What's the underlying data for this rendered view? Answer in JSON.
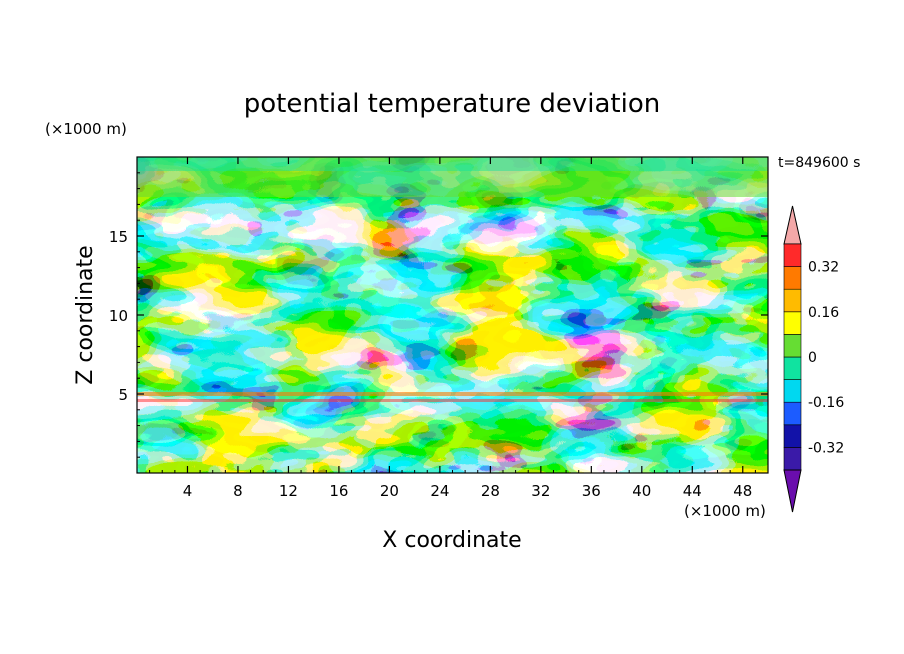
{
  "chart_data": {
    "type": "heatmap",
    "title": "potential temperature deviation",
    "xlabel": "X coordinate",
    "ylabel": "Z coordinate",
    "x_unit": "(×1000 m)",
    "y_unit": "(×1000 m)",
    "time_label": "t=849600 s",
    "xlim": [
      0,
      50
    ],
    "ylim": [
      0,
      20
    ],
    "x_ticks": [
      "4",
      "8",
      "12",
      "16",
      "20",
      "24",
      "28",
      "32",
      "36",
      "40",
      "44",
      "48"
    ],
    "y_ticks": [
      "5",
      "10",
      "15"
    ],
    "colorbar": {
      "tick_labels": [
        "0.32",
        "0.16",
        "0",
        "-0.16",
        "-0.32"
      ],
      "levels": [
        -0.4,
        -0.32,
        -0.24,
        -0.16,
        -0.08,
        0,
        0.08,
        0.16,
        0.24,
        0.32,
        0.4
      ],
      "colors": [
        "#6a0dad",
        "#3a1aa8",
        "#1212a8",
        "#1c5cff",
        "#00d8f0",
        "#10e3a0",
        "#66dd33",
        "#ffff00",
        "#ffbb00",
        "#ff7a00",
        "#ff2a2a",
        "#f4a8a8"
      ],
      "extend": "both"
    }
  }
}
